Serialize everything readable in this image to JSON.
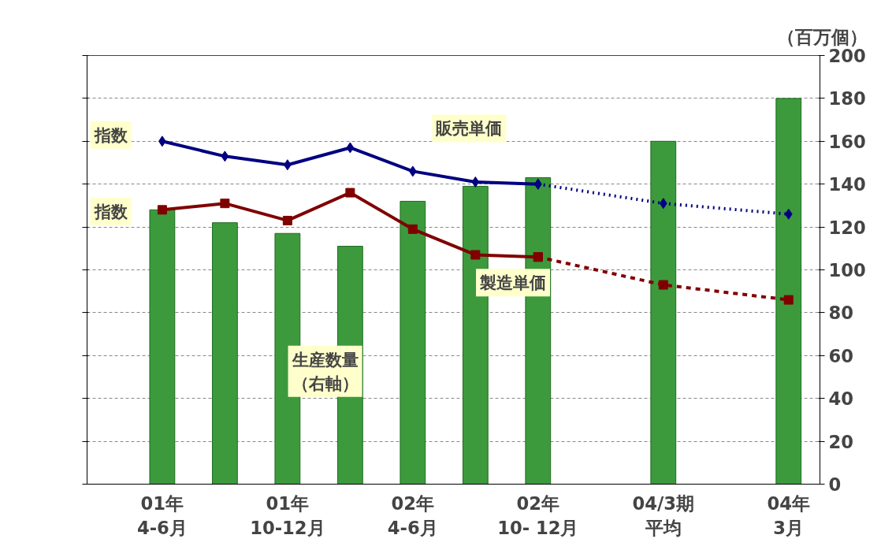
{
  "chart_data": {
    "type": "bar",
    "ylabel": "（百万個）",
    "categories": [
      "01年4-6月",
      null,
      "01年10-12月",
      null,
      "02年4-6月",
      null,
      "02年10- 12月",
      null,
      "04/3期平均",
      null,
      "04年3月"
    ],
    "series": [
      {
        "name": "生産数量（右軸）",
        "color": "#3c9a3c",
        "values": [
          128,
          122,
          117,
          111,
          132,
          139,
          143,
          null,
          160,
          null,
          180
        ]
      },
      {
        "name": "販売単価",
        "type": "line",
        "color": "#000080",
        "marker": "diamond",
        "values": [
          160,
          153,
          149,
          157,
          146,
          141,
          140,
          null,
          null,
          null,
          null
        ]
      },
      {
        "type": "line",
        "color": "#000080",
        "marker": "diamond",
        "line_style": "dotted",
        "values": [
          null,
          null,
          null,
          null,
          null,
          null,
          140,
          null,
          131,
          null,
          126
        ]
      },
      {
        "name": "製造単価",
        "type": "line",
        "color": "#800000",
        "marker": "square",
        "values": [
          128,
          131,
          123,
          136,
          119,
          107,
          106,
          null,
          null,
          null,
          null
        ]
      },
      {
        "type": "line",
        "color": "#800000",
        "marker": "square",
        "line_style": "dashed",
        "values": [
          null,
          null,
          null,
          null,
          null,
          null,
          106,
          null,
          93,
          null,
          86
        ]
      }
    ],
    "annotations": [
      "指数",
      "指数"
    ],
    "ylim": [
      0,
      200
    ],
    "yticks": [
      0,
      20,
      40,
      60,
      80,
      100,
      120,
      140,
      160,
      180,
      200
    ],
    "grid": "y"
  }
}
